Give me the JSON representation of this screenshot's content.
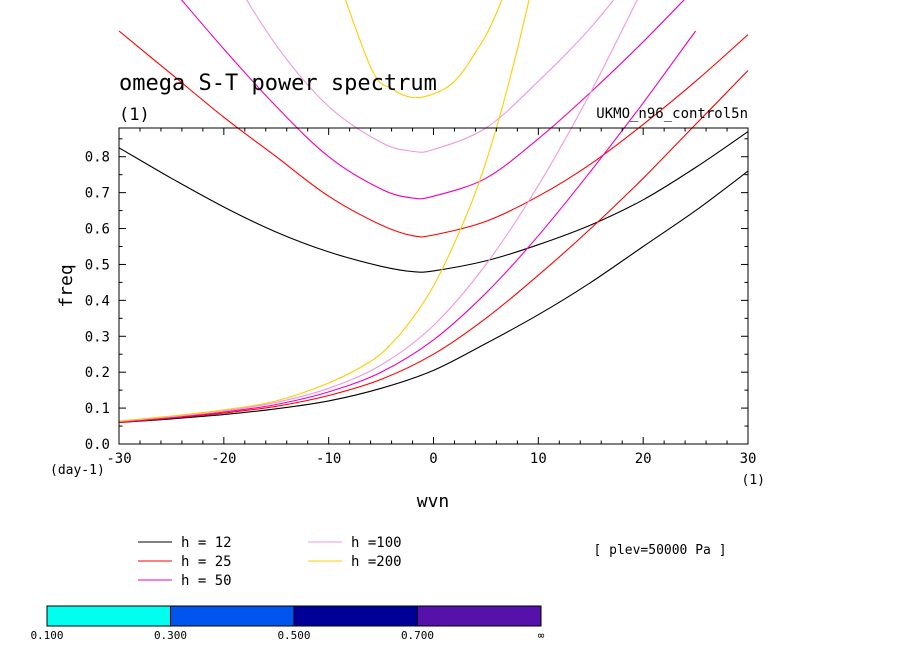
{
  "chart_data": {
    "type": "line",
    "title": "omega S-T power spectrum",
    "title_unit": "(1)",
    "subtitle_right": "UKMO_n96_control5n",
    "xlabel": "wvn",
    "ylabel": "freq",
    "x_unit": "(1)",
    "y_unit": "(day-1)",
    "xlim": [
      -30,
      30
    ],
    "ylim": [
      0,
      0.88
    ],
    "xticks": [
      "-30",
      "-20",
      "-10",
      "0",
      "10",
      "20",
      "30"
    ],
    "xtick_values": [
      -30,
      -20,
      -10,
      0,
      10,
      20,
      30
    ],
    "yticks": [
      "0.0",
      "0.1",
      "0.2",
      "0.3",
      "0.4",
      "0.5",
      "0.6",
      "0.7",
      "0.8"
    ],
    "ytick_values": [
      0,
      0.1,
      0.2,
      0.3,
      0.4,
      0.5,
      0.6,
      0.7,
      0.8
    ],
    "annotation": "[ plev=50000 Pa ]",
    "series": [
      {
        "name": "h = 12",
        "color": "#000000",
        "upper": {
          "x": [
            -30,
            -25,
            -20,
            -15,
            -10,
            -5,
            -2,
            0,
            5,
            10,
            15,
            20,
            25,
            30
          ],
          "y": [
            0.825,
            0.74,
            0.66,
            0.59,
            0.535,
            0.495,
            0.48,
            0.482,
            0.51,
            0.555,
            0.61,
            0.68,
            0.77,
            0.87
          ]
        },
        "lower": {
          "x": [
            -30,
            -25,
            -20,
            -15,
            -10,
            -5,
            0,
            5,
            10,
            15,
            20,
            25,
            30
          ],
          "y": [
            0.06,
            0.07,
            0.082,
            0.098,
            0.12,
            0.155,
            0.205,
            0.28,
            0.36,
            0.45,
            0.55,
            0.65,
            0.76
          ]
        }
      },
      {
        "name": "h = 25",
        "color": "#ff0000",
        "upper": {
          "x": [
            -30,
            -25,
            -20,
            -15,
            -10,
            -5,
            -2,
            0,
            5,
            10,
            15,
            20,
            25,
            30
          ],
          "y": [
            1.15,
            1.03,
            0.91,
            0.8,
            0.69,
            0.61,
            0.58,
            0.582,
            0.62,
            0.69,
            0.78,
            0.89,
            1.01,
            1.14
          ]
        },
        "lower": {
          "x": [
            -30,
            -25,
            -20,
            -15,
            -10,
            -5,
            0,
            5,
            10,
            15,
            20,
            25,
            30
          ],
          "y": [
            0.06,
            0.072,
            0.086,
            0.105,
            0.135,
            0.18,
            0.25,
            0.35,
            0.47,
            0.6,
            0.74,
            0.89,
            1.04
          ]
        }
      },
      {
        "name": "h = 50",
        "color": "#ee00bb",
        "upper": {
          "x": [
            -25,
            -20,
            -15,
            -10,
            -5,
            -2,
            0,
            5,
            10,
            15,
            20,
            25
          ],
          "y": [
            1.27,
            1.1,
            0.94,
            0.8,
            0.71,
            0.685,
            0.69,
            0.74,
            0.85,
            0.98,
            1.12,
            1.27
          ]
        },
        "lower": {
          "x": [
            -30,
            -25,
            -20,
            -15,
            -10,
            -5,
            0,
            5,
            10,
            15,
            20,
            25
          ],
          "y": [
            0.062,
            0.074,
            0.089,
            0.11,
            0.145,
            0.2,
            0.29,
            0.42,
            0.58,
            0.76,
            0.95,
            1.15
          ]
        }
      },
      {
        "name": "h =100",
        "color": "#ee99dd",
        "upper": {
          "x": [
            -20,
            -15,
            -10,
            -5,
            -2,
            0,
            5,
            10,
            15,
            20
          ],
          "y": [
            1.34,
            1.11,
            0.94,
            0.84,
            0.815,
            0.82,
            0.88,
            1.01,
            1.16,
            1.34
          ]
        },
        "lower": {
          "x": [
            -30,
            -25,
            -20,
            -15,
            -10,
            -5,
            0,
            5,
            10,
            15,
            20
          ],
          "y": [
            0.063,
            0.076,
            0.092,
            0.116,
            0.155,
            0.22,
            0.33,
            0.5,
            0.72,
            0.98,
            1.27
          ]
        }
      },
      {
        "name": "h =200",
        "color": "#ffcc00",
        "upper": {
          "x": [
            -10,
            -6,
            -4,
            -2,
            0,
            2,
            4,
            6,
            10
          ],
          "y": [
            1.37,
            1.05,
            0.99,
            0.965,
            0.975,
            1.01,
            1.09,
            1.2,
            1.5
          ]
        },
        "lower": {
          "x": [
            -30,
            -25,
            -20,
            -15,
            -10,
            -6,
            -4,
            -2,
            0,
            2,
            4,
            6,
            8,
            10
          ],
          "y": [
            0.064,
            0.078,
            0.095,
            0.12,
            0.17,
            0.23,
            0.28,
            0.35,
            0.44,
            0.56,
            0.7,
            0.88,
            1.1,
            1.35
          ]
        }
      }
    ],
    "colorbar": {
      "labels": [
        "0.100",
        "0.300",
        "0.500",
        "0.700",
        "∞"
      ],
      "colors": [
        "#00ffee",
        "#0055ee",
        "#000099",
        "#5511aa"
      ]
    }
  }
}
